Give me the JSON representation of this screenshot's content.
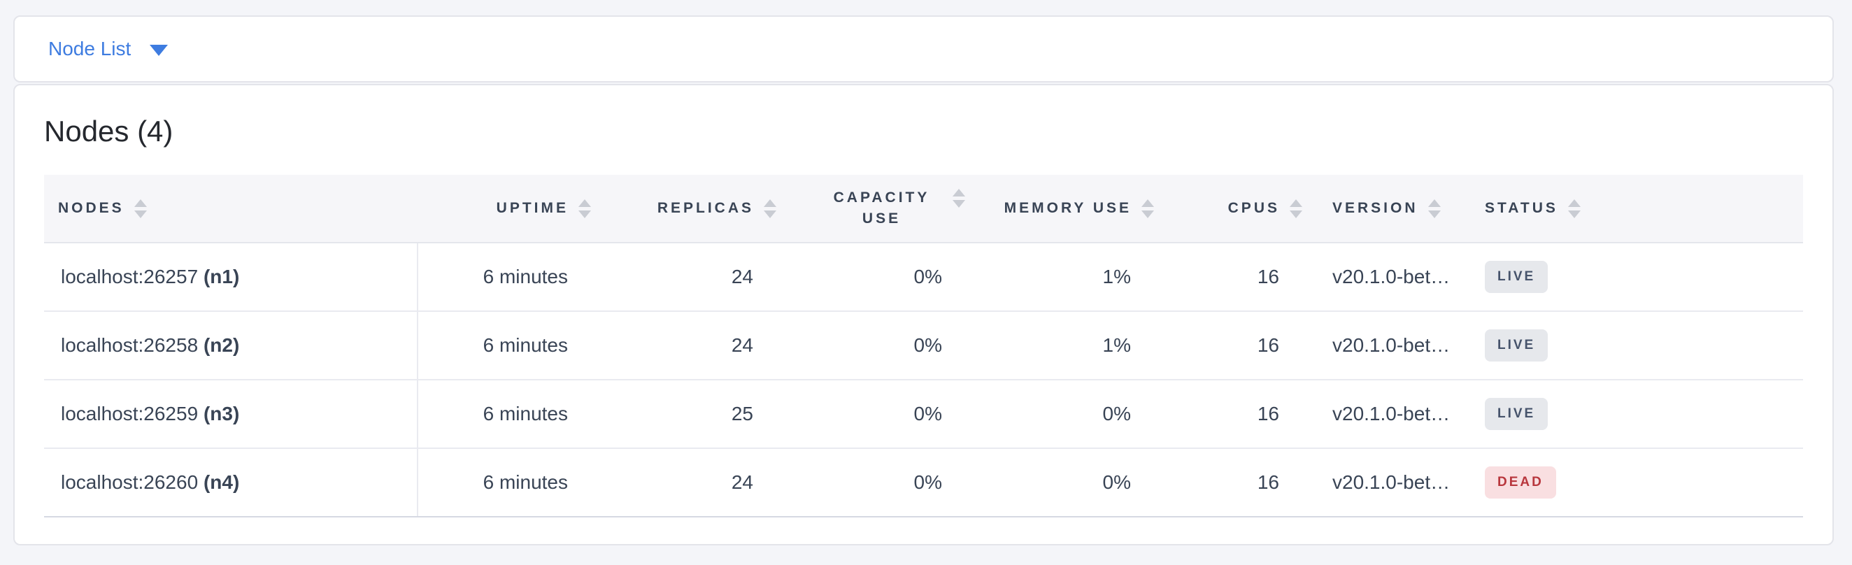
{
  "toolbar": {
    "dropdown_label": "Node List"
  },
  "main": {
    "title": "Nodes (4)",
    "table": {
      "columns": [
        {
          "label": "NODES",
          "field": "nodes",
          "align": "left",
          "wrap": false
        },
        {
          "label": "UPTIME",
          "field": "uptime",
          "align": "right",
          "wrap": false
        },
        {
          "label": "REPLICAS",
          "field": "replicas",
          "align": "right",
          "wrap": false
        },
        {
          "label": "CAPACITY USE",
          "field": "capacity_use",
          "align": "right",
          "wrap": true
        },
        {
          "label": "MEMORY USE",
          "field": "memory_use",
          "align": "right",
          "wrap": false
        },
        {
          "label": "CPUS",
          "field": "cpus",
          "align": "right",
          "wrap": false
        },
        {
          "label": "VERSION",
          "field": "version",
          "align": "left",
          "wrap": false
        },
        {
          "label": "STATUS",
          "field": "status",
          "align": "left",
          "wrap": false
        }
      ],
      "rows": [
        {
          "address": "localhost:26257",
          "node_id": "(n1)",
          "uptime": "6 minutes",
          "replicas": "24",
          "capacity_use": "0%",
          "memory_use": "1%",
          "cpus": "16",
          "version": "v20.1.0-bet…",
          "status": "LIVE"
        },
        {
          "address": "localhost:26258",
          "node_id": "(n2)",
          "uptime": "6 minutes",
          "replicas": "24",
          "capacity_use": "0%",
          "memory_use": "1%",
          "cpus": "16",
          "version": "v20.1.0-bet…",
          "status": "LIVE"
        },
        {
          "address": "localhost:26259",
          "node_id": "(n3)",
          "uptime": "6 minutes",
          "replicas": "25",
          "capacity_use": "0%",
          "memory_use": "0%",
          "cpus": "16",
          "version": "v20.1.0-bet…",
          "status": "LIVE"
        },
        {
          "address": "localhost:26260",
          "node_id": "(n4)",
          "uptime": "6 minutes",
          "replicas": "24",
          "capacity_use": "0%",
          "memory_use": "0%",
          "cpus": "16",
          "version": "v20.1.0-bet…",
          "status": "DEAD"
        }
      ],
      "status_styles": {
        "LIVE": {
          "bg": "#e6e8ec",
          "color": "#46536b"
        },
        "DEAD": {
          "bg": "#f9dfe1",
          "color": "#b8373d"
        }
      }
    }
  },
  "colors": {
    "accent_blue": "#3e7ce0",
    "page_background": "#f4f5f9",
    "header_text": "#394455"
  }
}
